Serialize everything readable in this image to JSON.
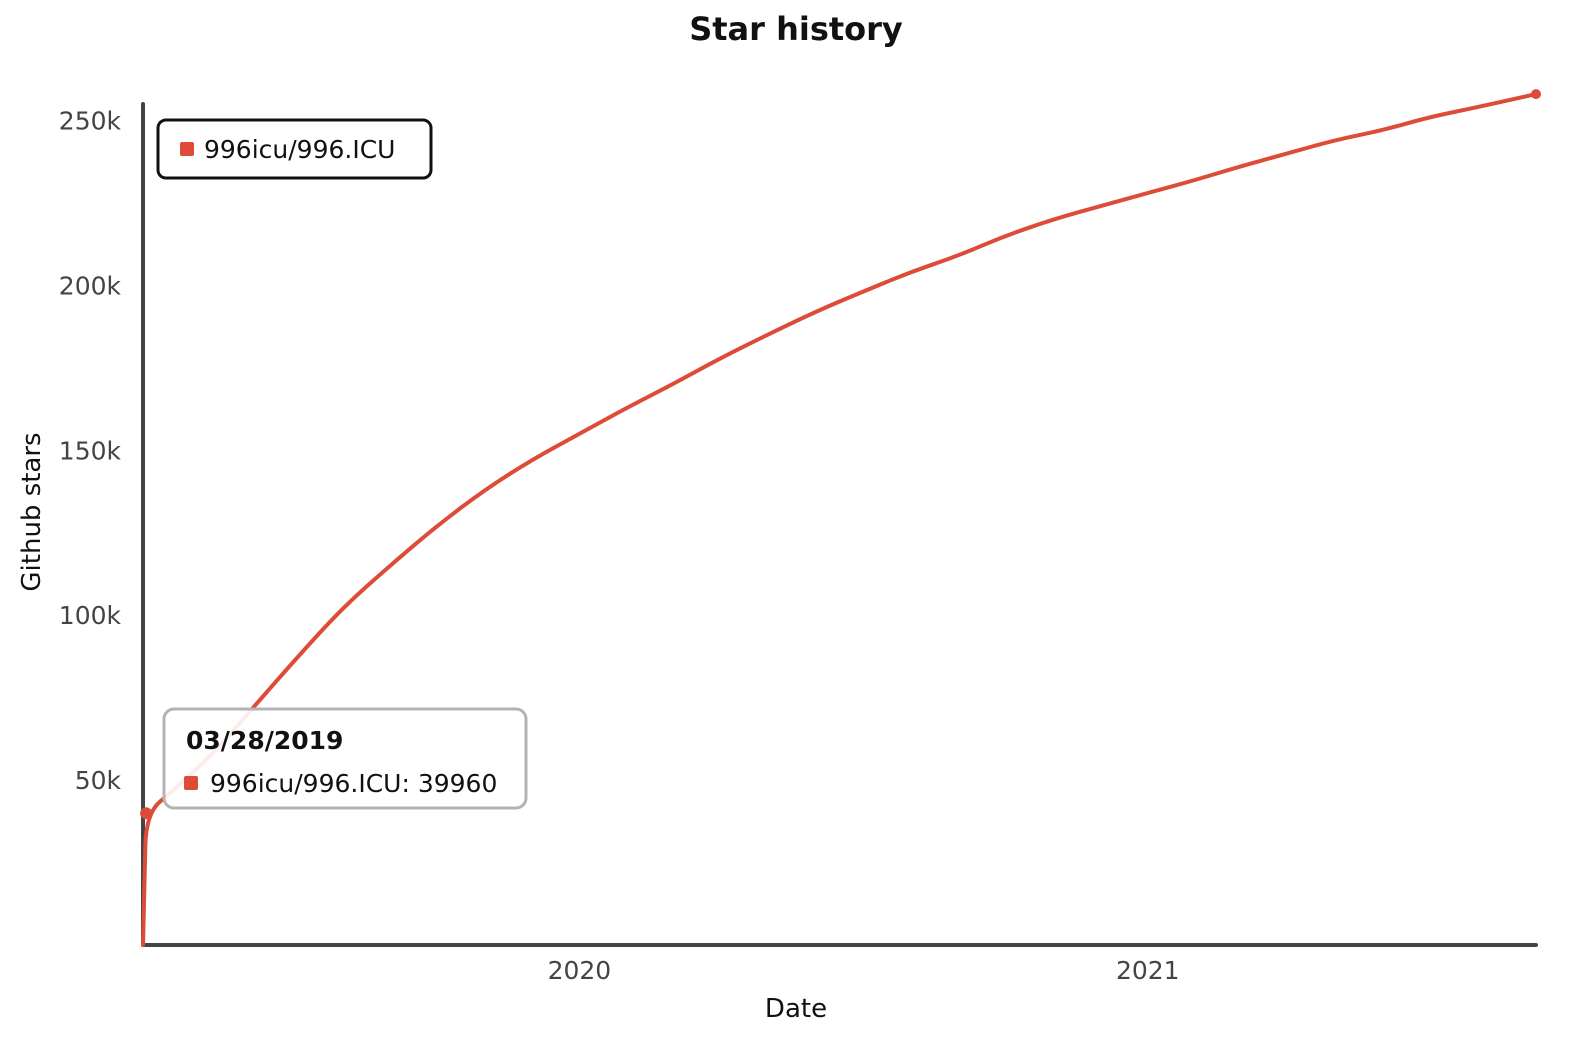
{
  "chart_data": {
    "type": "line",
    "title": "Star history",
    "xlabel": "Date",
    "ylabel": "Github stars",
    "x_tick_labels": [
      "2020",
      "2021"
    ],
    "y_tick_labels": [
      "50k",
      "100k",
      "150k",
      "200k",
      "250k"
    ],
    "y_ticks": [
      50000,
      100000,
      150000,
      200000,
      250000
    ],
    "ylim": [
      0,
      255000
    ],
    "xlim": [
      "2019-03-26",
      "2021-09-08"
    ],
    "x_ticks": [
      "2020-01-01",
      "2021-01-01"
    ],
    "grid": false,
    "legend_position": "top-left",
    "color": "#dd4b39",
    "series": [
      {
        "name": "996icu/996.ICU",
        "x": [
          "2019-03-26",
          "2019-03-27",
          "2019-03-28",
          "2019-04-15",
          "2019-05-10",
          "2019-06-05",
          "2019-07-01",
          "2019-08-01",
          "2019-09-01",
          "2019-10-01",
          "2019-11-01",
          "2019-12-01",
          "2020-01-01",
          "2020-02-01",
          "2020-03-01",
          "2020-04-01",
          "2020-05-01",
          "2020-06-01",
          "2020-07-01",
          "2020-08-01",
          "2020-09-01",
          "2020-10-01",
          "2020-11-01",
          "2020-12-01",
          "2021-01-01",
          "2021-02-01",
          "2021-03-01",
          "2021-04-01",
          "2021-05-01",
          "2021-06-01",
          "2021-07-01",
          "2021-08-01",
          "2021-09-08"
        ],
        "values": [
          0,
          20000,
          39960,
          47000,
          58000,
          72000,
          86000,
          102000,
          115000,
          127000,
          138000,
          147000,
          155000,
          163000,
          170000,
          178000,
          185000,
          192000,
          198000,
          204000,
          209000,
          215000,
          220000,
          224000,
          228000,
          232000,
          236000,
          240000,
          244000,
          247000,
          251000,
          254000,
          258000
        ]
      }
    ],
    "tooltip": {
      "date": "03/28/2019",
      "text": "996icu/996.ICU: 39960"
    }
  }
}
